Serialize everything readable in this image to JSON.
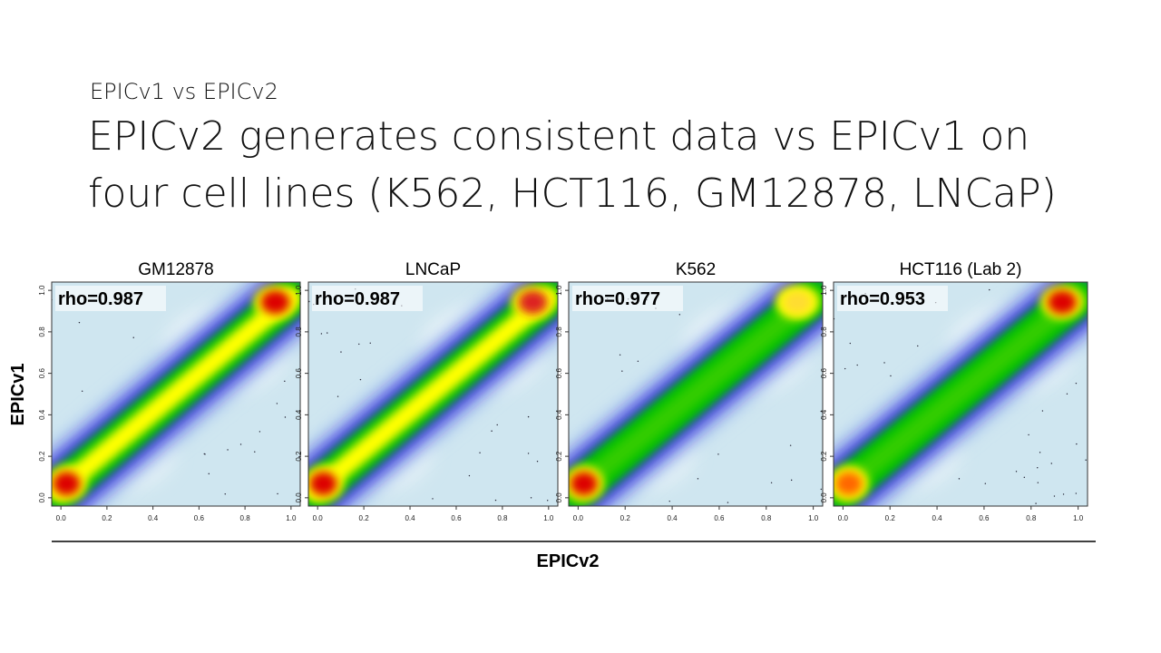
{
  "slide": {
    "kicker": "EPICv1 vs EPICv2",
    "title_lines": [
      "EPICv2 generates consistent data vs EPICv1 on",
      "four cell lines (K562, HCT116, GM12878, LNCaP)"
    ],
    "x_label": "EPICv2",
    "y_label": "EPICv1"
  },
  "chart_data": [
    {
      "type": "density",
      "title": "GM12878",
      "annotation": "rho=0.987",
      "xlim": [
        -0.04,
        1.04
      ],
      "ylim": [
        -0.04,
        1.04
      ],
      "xticks": [
        {
          "value": 0,
          "label": "0.0"
        },
        0.2,
        0.4,
        0.6,
        0.8,
        {
          "value": 1,
          "label": "1.0"
        }
      ],
      "yticks": [
        {
          "value": 0,
          "label": "0.0"
        },
        0.2,
        0.4,
        0.6,
        0.8,
        {
          "value": 1,
          "label": "1.0"
        }
      ]
    },
    {
      "type": "density",
      "title": "LNCaP",
      "annotation": "rho=0.987",
      "xlim": [
        -0.04,
        1.04
      ],
      "ylim": [
        -0.04,
        1.04
      ],
      "xticks": [
        {
          "value": 0,
          "label": "0.0"
        },
        0.2,
        0.4,
        0.6,
        0.8,
        {
          "value": 1,
          "label": "1.0"
        }
      ],
      "yticks": [
        {
          "value": 0,
          "label": "0.0"
        },
        0.2,
        0.4,
        0.6,
        0.8,
        {
          "value": 1,
          "label": "1.0"
        }
      ]
    },
    {
      "type": "density",
      "title": "K562",
      "annotation": "rho=0.977",
      "xlim": [
        -0.04,
        1.04
      ],
      "ylim": [
        -0.04,
        1.04
      ],
      "xticks": [
        {
          "value": 0,
          "label": "0.0"
        },
        0.2,
        0.4,
        0.6,
        0.8,
        {
          "value": 1,
          "label": "1.0"
        }
      ],
      "yticks": [
        {
          "value": 0,
          "label": "0.0"
        },
        0.2,
        0.4,
        0.6,
        0.8,
        {
          "value": 1,
          "label": "1.0"
        }
      ]
    },
    {
      "type": "density",
      "title": "HCT116 (Lab 2)",
      "annotation": "rho=0.953",
      "xlim": [
        -0.04,
        1.04
      ],
      "ylim": [
        -0.04,
        1.04
      ],
      "xticks": [
        {
          "value": 0,
          "label": "0.0"
        },
        0.2,
        0.4,
        0.6,
        0.8,
        {
          "value": 1,
          "label": "1.0"
        }
      ],
      "yticks": [
        {
          "value": 0,
          "label": "0.0"
        },
        0.2,
        0.4,
        0.6,
        0.8,
        {
          "value": 1,
          "label": "1.0"
        }
      ]
    }
  ]
}
